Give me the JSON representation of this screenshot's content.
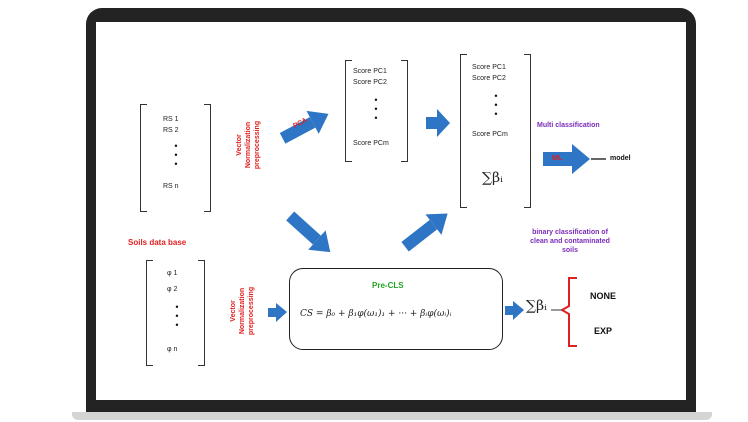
{
  "diagram": {
    "rs_list": {
      "first": "RS 1",
      "second": "RS 2",
      "last": "RS n",
      "dots": "•\n•\n•"
    },
    "preproc_top": {
      "line1": "Vector",
      "line2": "Normalization",
      "line3": "preprocessing"
    },
    "preproc_bottom": {
      "line1": "Vector",
      "line2": "Normalization",
      "line3": "preprocessing"
    },
    "pca_label": "PCA",
    "scores_a": {
      "first": "Score PC1",
      "second": "Score PC2",
      "last": "Score PCm",
      "dots": "•\n•\n•"
    },
    "scores_b": {
      "first": "Score PC1",
      "second": "Score PC2",
      "last": "Score PCm",
      "dots": "•\n•\n•",
      "sum": "∑βᵢ"
    },
    "multi_label": "Multi classification",
    "ml_label": "ML",
    "model_label": "model",
    "soils_label": "Soils data base",
    "phi_list": {
      "first": "φ 1",
      "second": "φ 2",
      "last": "φ n",
      "dots": "•\n•\n•"
    },
    "preclass": {
      "title": "Pre-CLS",
      "formula": "CS = β₀ + β₁φ(ω₁)₁ + ··· + βᵢφ(ωᵢ)ᵢ"
    },
    "binary_label": {
      "line1": "binary classification of",
      "line2": "clean and contaminated",
      "line3": "soils"
    },
    "sum_bottom": "∑βᵢ",
    "outputs": {
      "a": "NONE",
      "b": "EXP"
    }
  },
  "colors": {
    "arrow": "#2e75c5",
    "accent_red": "#e02020",
    "accent_purple": "#7a2bb8",
    "accent_green": "#22a322"
  }
}
